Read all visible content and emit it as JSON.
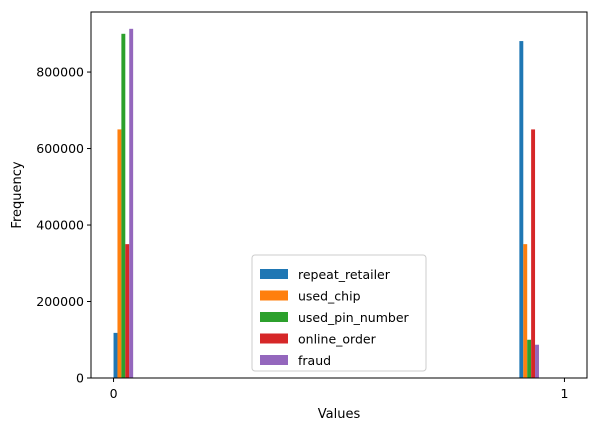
{
  "chart_data": {
    "type": "bar",
    "title": "",
    "xlabel": "Values",
    "ylabel": "Frequency",
    "xlim": [
      -0.05,
      1.05
    ],
    "ylim": [
      0,
      957000
    ],
    "x_ticks": [
      0,
      1
    ],
    "x_tick_labels": [
      "0",
      "1"
    ],
    "y_ticks": [
      0,
      200000,
      400000,
      600000,
      800000
    ],
    "y_tick_labels": [
      "0",
      "200000",
      "400000",
      "600000",
      "800000"
    ],
    "grid": false,
    "legend_position": "lower center",
    "categories": [
      "0",
      "1"
    ],
    "series": [
      {
        "name": "repeat_retailer",
        "color": "#1f77b4",
        "values": [
          118000,
          881000
        ]
      },
      {
        "name": "used_chip",
        "color": "#ff7f0e",
        "values": [
          650000,
          350000
        ]
      },
      {
        "name": "used_pin_number",
        "color": "#2ca02c",
        "values": [
          900000,
          100000
        ]
      },
      {
        "name": "online_order",
        "color": "#d62728",
        "values": [
          350000,
          650000
        ]
      },
      {
        "name": "fraud",
        "color": "#9467bd",
        "values": [
          913000,
          87000
        ]
      }
    ]
  }
}
